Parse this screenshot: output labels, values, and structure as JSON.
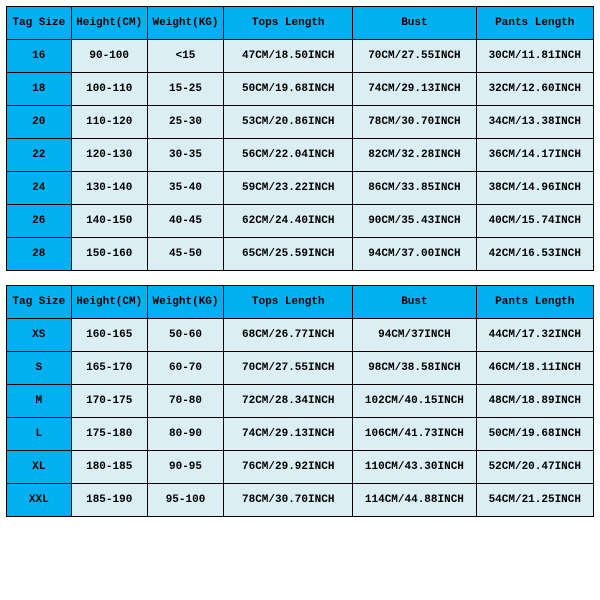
{
  "columns": [
    "Tag Size",
    "Height(CM)",
    "Weight(KG)",
    "Tops Length",
    "Bust",
    "Pants Length"
  ],
  "tables": [
    {
      "rows": [
        [
          "16",
          "90-100",
          "<15",
          "47CM/18.50INCH",
          "70CM/27.55INCH",
          "30CM/11.81INCH"
        ],
        [
          "18",
          "100-110",
          "15-25",
          "50CM/19.68INCH",
          "74CM/29.13INCH",
          "32CM/12.60INCH"
        ],
        [
          "20",
          "110-120",
          "25-30",
          "53CM/20.86INCH",
          "78CM/30.70INCH",
          "34CM/13.38INCH"
        ],
        [
          "22",
          "120-130",
          "30-35",
          "56CM/22.04INCH",
          "82CM/32.28INCH",
          "36CM/14.17INCH"
        ],
        [
          "24",
          "130-140",
          "35-40",
          "59CM/23.22INCH",
          "86CM/33.85INCH",
          "38CM/14.96INCH"
        ],
        [
          "26",
          "140-150",
          "40-45",
          "62CM/24.40INCH",
          "90CM/35.43INCH",
          "40CM/15.74INCH"
        ],
        [
          "28",
          "150-160",
          "45-50",
          "65CM/25.59INCH",
          "94CM/37.00INCH",
          "42CM/16.53INCH"
        ]
      ]
    },
    {
      "rows": [
        [
          "XS",
          "160-165",
          "50-60",
          "68CM/26.77INCH",
          "94CM/37INCH",
          "44CM/17.32INCH"
        ],
        [
          "S",
          "165-170",
          "60-70",
          "70CM/27.55INCH",
          "98CM/38.58INCH",
          "46CM/18.11INCH"
        ],
        [
          "M",
          "170-175",
          "70-80",
          "72CM/28.34INCH",
          "102CM/40.15INCH",
          "48CM/18.89INCH"
        ],
        [
          "L",
          "175-180",
          "80-90",
          "74CM/29.13INCH",
          "106CM/41.73INCH",
          "50CM/19.68INCH"
        ],
        [
          "XL",
          "180-185",
          "90-95",
          "76CM/29.92INCH",
          "110CM/43.30INCH",
          "52CM/20.47INCH"
        ],
        [
          "XXL",
          "185-190",
          "95-100",
          "78CM/30.70INCH",
          "114CM/44.88INCH",
          "54CM/21.25INCH"
        ]
      ]
    }
  ],
  "style": {
    "header_bg": "#00b0f0",
    "tag_bg": "#00b0f0",
    "cell_bg": "#daeef3",
    "border_color": "#000000",
    "font_family": "Courier New",
    "font_size_pt": 11,
    "font_weight": "bold",
    "col_widths_pct": [
      11,
      13,
      13,
      22,
      21,
      20
    ]
  }
}
